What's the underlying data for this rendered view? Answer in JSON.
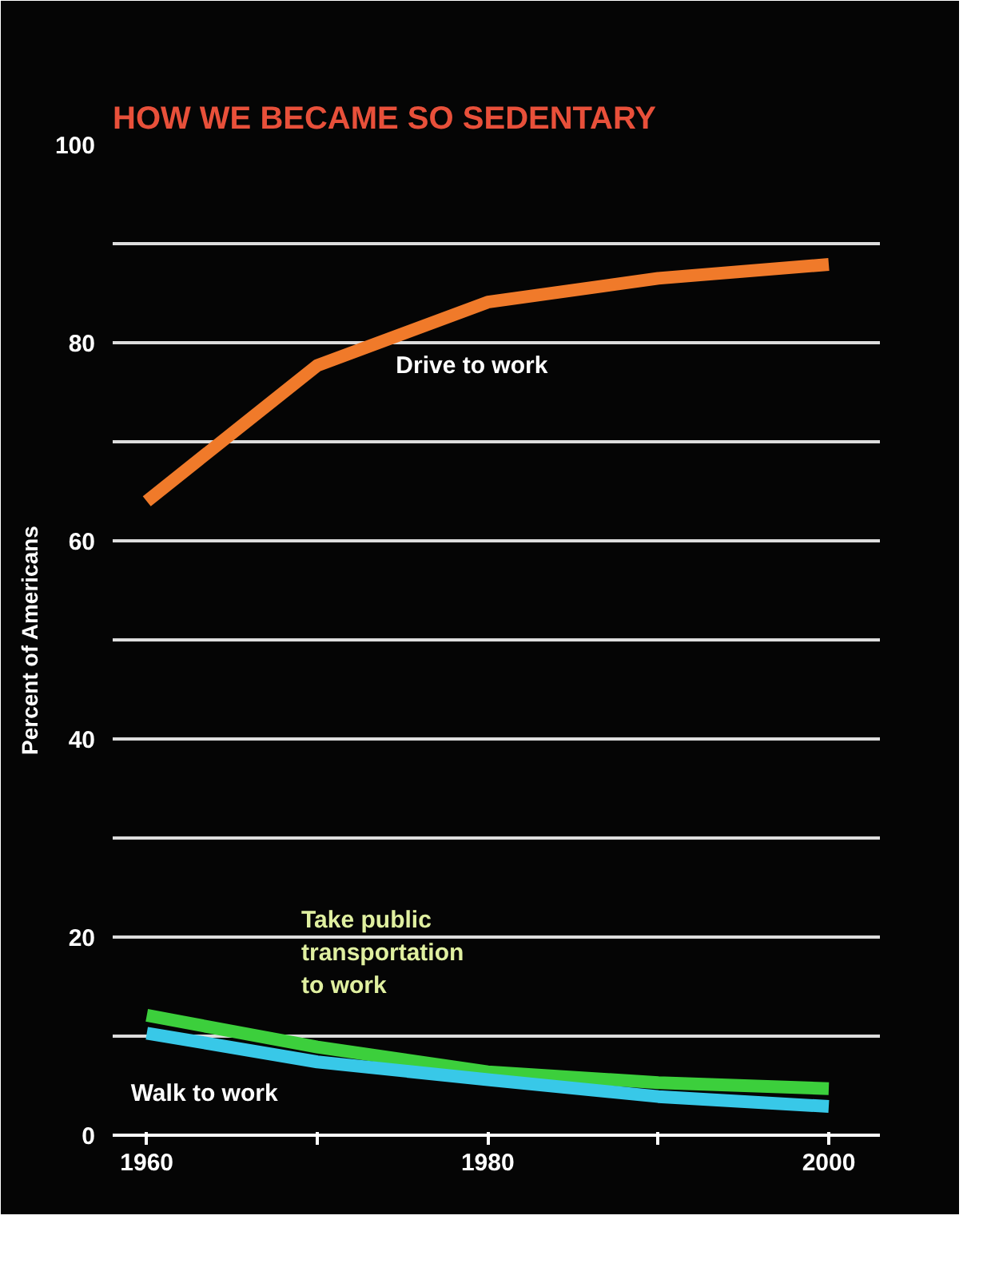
{
  "chart_data": {
    "type": "line",
    "title": "HOW WE BECAME SO SEDENTARY",
    "ylabel": "Percent of Americans",
    "x": [
      1960,
      1970,
      1980,
      1990,
      2000
    ],
    "series": [
      {
        "name": "Drive to work",
        "color": "#f07a2a",
        "values": [
          64.0,
          77.7,
          84.1,
          86.5,
          87.9
        ]
      },
      {
        "name": "Take public transportation to work",
        "color": "#3ccf3c",
        "values": [
          12.1,
          8.9,
          6.4,
          5.3,
          4.7
        ]
      },
      {
        "name": "Walk to work",
        "color": "#38c8e8",
        "values": [
          10.3,
          7.4,
          5.6,
          3.9,
          2.9
        ]
      }
    ],
    "xlim": [
      1958,
      2003
    ],
    "ylim": [
      0,
      100
    ],
    "xticks": [
      1960,
      {
        "value": 1970,
        "label": null
      },
      1980,
      {
        "value": 1990,
        "label": null
      },
      2000
    ],
    "yticks": [
      0,
      {
        "value": 10,
        "label": null
      },
      20,
      {
        "value": 30,
        "label": null
      },
      40,
      {
        "value": 50,
        "label": null
      },
      60,
      {
        "value": 70,
        "label": null
      },
      80,
      {
        "value": 90,
        "label": null
      },
      100
    ],
    "grid": "y",
    "legend": false,
    "marker": "none",
    "line_style": "solid"
  }
}
